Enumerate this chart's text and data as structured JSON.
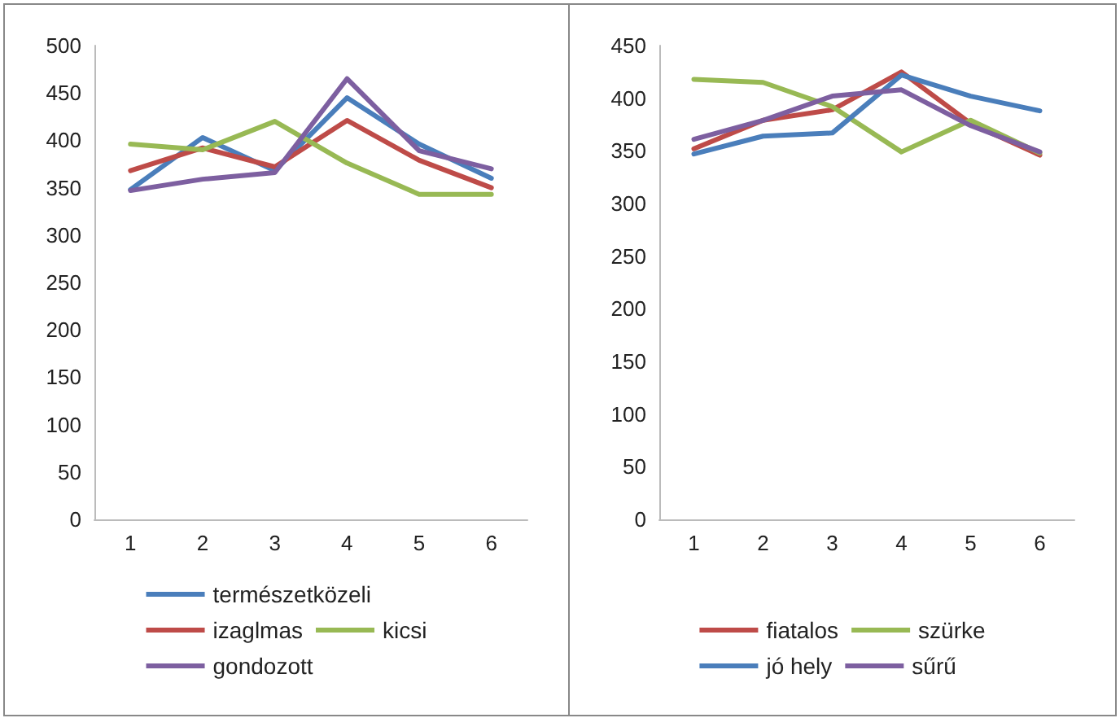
{
  "chart_data": [
    {
      "type": "line",
      "categories": [
        "1",
        "2",
        "3",
        "4",
        "5",
        "6"
      ],
      "ylim": [
        0,
        500
      ],
      "yticks": [
        0,
        50,
        100,
        150,
        200,
        250,
        300,
        350,
        400,
        450,
        500
      ],
      "grid": false,
      "legend": "bottom",
      "marker": "none",
      "series": [
        {
          "name": "természetközeli",
          "color": "#4a7ebb",
          "values": [
            348,
            403,
            368,
            445,
            396,
            360
          ]
        },
        {
          "name": "izaglmas",
          "color": "#be4b48",
          "values": [
            368,
            392,
            372,
            421,
            379,
            350
          ]
        },
        {
          "name": "kicsi",
          "color": "#98b954",
          "values": [
            396,
            390,
            420,
            376,
            343,
            343
          ]
        },
        {
          "name": "gondozott",
          "color": "#7d5fa0",
          "values": [
            347,
            359,
            366,
            465,
            389,
            370
          ]
        }
      ]
    },
    {
      "type": "line",
      "categories": [
        "1",
        "2",
        "3",
        "4",
        "5",
        "6"
      ],
      "ylim": [
        0,
        450
      ],
      "yticks": [
        0,
        50,
        100,
        150,
        200,
        250,
        300,
        350,
        400,
        450
      ],
      "grid": false,
      "legend": "bottom",
      "marker": "none",
      "series": [
        {
          "name": "fiatalos",
          "color": "#be4b48",
          "values": [
            352,
            379,
            389,
            425,
            376,
            346
          ]
        },
        {
          "name": "szürke",
          "color": "#98b954",
          "values": [
            418,
            415,
            392,
            349,
            379,
            348
          ]
        },
        {
          "name": "jó hely",
          "color": "#4a7ebb",
          "values": [
            347,
            364,
            367,
            422,
            402,
            388
          ]
        },
        {
          "name": "sűrű",
          "color": "#7d5fa0",
          "values": [
            361,
            379,
            402,
            408,
            374,
            349
          ]
        }
      ]
    }
  ]
}
